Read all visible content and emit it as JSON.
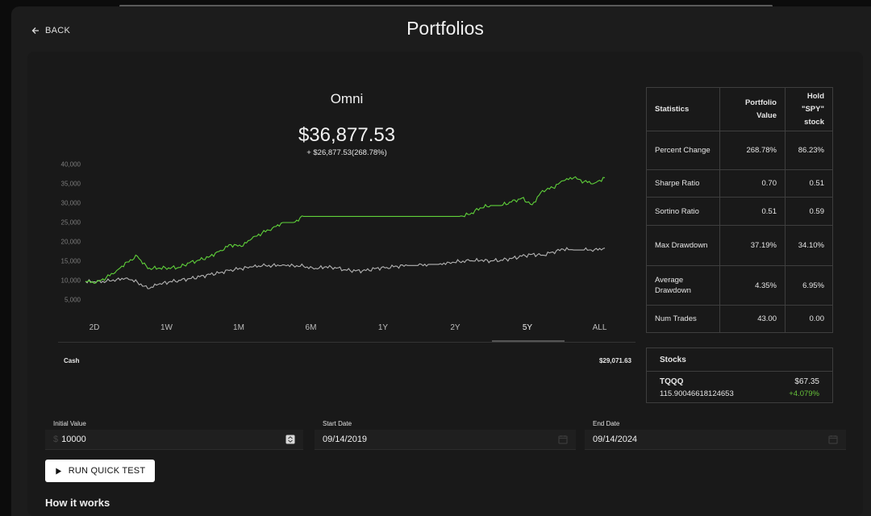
{
  "header": {
    "back_label": "BACK",
    "title": "Portfolios"
  },
  "portfolio": {
    "name": "Omni",
    "value": "$36,877.53",
    "change": "+ $26,877.53(268.78%)"
  },
  "chart_data": {
    "type": "line",
    "title": "",
    "ylim": [
      5000,
      40000
    ],
    "y_ticks": [
      "40,000",
      "35,000",
      "30,000",
      "25,000",
      "20,000",
      "15,000",
      "10,000",
      "5,000"
    ],
    "x": [
      0,
      2,
      4,
      6,
      8,
      10,
      12,
      14,
      16,
      18,
      20,
      22,
      24,
      26,
      28,
      30,
      32,
      34,
      36,
      38,
      40,
      42,
      44,
      46,
      48,
      50,
      52,
      54,
      56,
      58,
      60,
      62,
      64,
      66,
      68,
      70,
      72,
      74,
      76,
      78,
      80,
      82,
      84,
      86,
      88,
      90,
      92,
      94,
      96,
      98,
      100
    ],
    "series": [
      {
        "color": "#5fd13a",
        "values": [
          10000,
          9600,
          11000,
          12800,
          15000,
          16500,
          13300,
          13400,
          13500,
          13600,
          14800,
          15500,
          16500,
          18000,
          19500,
          19000,
          21000,
          22500,
          23800,
          25200,
          25200,
          26800,
          26800,
          26800,
          26800,
          26800,
          26800,
          26800,
          26800,
          26800,
          26800,
          26800,
          26800,
          26800,
          26800,
          26800,
          26800,
          27300,
          29000,
          29600,
          29600,
          30500,
          31500,
          29800,
          33500,
          34200,
          36000,
          36800,
          35800,
          35400,
          36800
        ]
      },
      {
        "color": "#b4b4b4",
        "values": [
          10000,
          9800,
          10000,
          10500,
          10900,
          9800,
          8100,
          9200,
          9800,
          10300,
          10700,
          11200,
          11800,
          12300,
          13000,
          13300,
          13700,
          14000,
          14100,
          14300,
          14100,
          13900,
          13200,
          13700,
          13600,
          13000,
          12700,
          12800,
          13400,
          13600,
          13900,
          14100,
          14100,
          14400,
          14400,
          14900,
          15100,
          15300,
          15400,
          15300,
          15500,
          15900,
          16500,
          17000,
          16800,
          17600,
          18300,
          18100,
          18100,
          18200,
          18600
        ]
      }
    ]
  },
  "ranges": [
    "2D",
    "1W",
    "1M",
    "6M",
    "1Y",
    "2Y",
    "5Y",
    "ALL"
  ],
  "active_range": "5Y",
  "cash": {
    "label": "Cash",
    "value": "$29,071.63"
  },
  "stats": {
    "headers": [
      "Statistics",
      "Portfolio Value",
      "Hold \"SPY\" stock"
    ],
    "rows": [
      {
        "label": "Percent Change",
        "portfolio": "268.78%",
        "spy": "86.23%"
      },
      {
        "label": "Sharpe Ratio",
        "portfolio": "0.70",
        "spy": "0.51"
      },
      {
        "label": "Sortino Ratio",
        "portfolio": "0.51",
        "spy": "0.59"
      },
      {
        "label": "Max Drawdown",
        "portfolio": "37.19%",
        "spy": "34.10%"
      },
      {
        "label": "Average Drawdown",
        "portfolio": "4.35%",
        "spy": "6.95%"
      },
      {
        "label": "Num Trades",
        "portfolio": "43.00",
        "spy": "0.00"
      }
    ]
  },
  "stocks": {
    "title": "Stocks",
    "items": [
      {
        "ticker": "TQQQ",
        "shares": "115.90046618124653",
        "price": "$67.35",
        "change": "+4.079%"
      }
    ]
  },
  "form": {
    "initial_value": {
      "label": "Initial Value",
      "value": "10000"
    },
    "start_date": {
      "label": "Start Date",
      "value": "09/14/2019"
    },
    "end_date": {
      "label": "End Date",
      "value": "09/14/2024"
    },
    "run_label": "RUN QUICK TEST"
  },
  "how_it_works": "How it works"
}
